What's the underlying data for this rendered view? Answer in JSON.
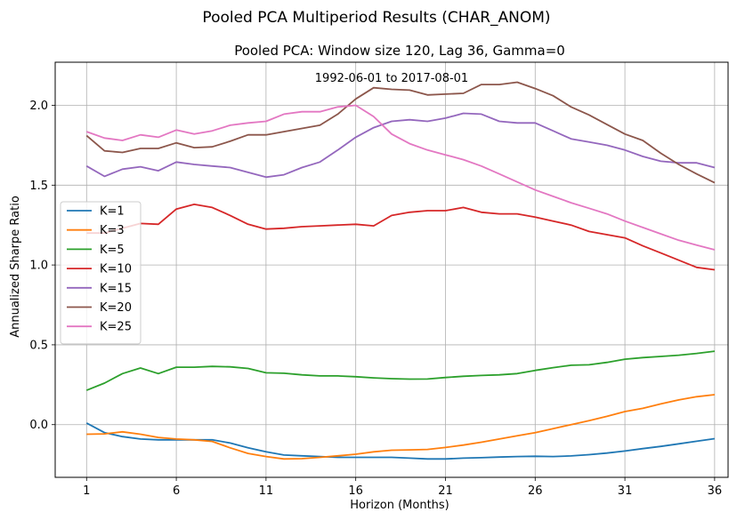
{
  "figure": {
    "suptitle": "Pooled PCA Multiperiod Results (CHAR_ANOM)"
  },
  "chart_data": {
    "type": "line",
    "title": "Pooled PCA: Window size 120, Lag 36, Gamma=0",
    "xlabel": "Horizon (Months)",
    "ylabel": "Annualized Sharpe Ratio",
    "annotation": "1992-06-01 to 2017-08-01",
    "xlim": [
      -0.75,
      36.75
    ],
    "ylim": [
      -0.33,
      2.27
    ],
    "xticks": [
      1,
      6,
      11,
      16,
      21,
      26,
      31,
      36
    ],
    "yticks": [
      0.0,
      0.5,
      1.0,
      1.5,
      2.0
    ],
    "ytick_labels": [
      "0.0",
      "0.5",
      "1.0",
      "1.5",
      "2.0"
    ],
    "grid": true,
    "legend_position": "center-left",
    "x": [
      1,
      2,
      3,
      4,
      5,
      6,
      7,
      8,
      9,
      10,
      11,
      12,
      13,
      14,
      15,
      16,
      17,
      18,
      19,
      20,
      21,
      22,
      23,
      24,
      25,
      26,
      27,
      28,
      29,
      30,
      31,
      32,
      33,
      34,
      35,
      36
    ],
    "series": [
      {
        "name": "K=1",
        "color": "#1f77b4",
        "values": [
          0.01,
          -0.05,
          -0.075,
          -0.09,
          -0.095,
          -0.095,
          -0.095,
          -0.095,
          -0.115,
          -0.145,
          -0.17,
          -0.19,
          -0.195,
          -0.2,
          -0.205,
          -0.205,
          -0.205,
          -0.205,
          -0.21,
          -0.215,
          -0.215,
          -0.21,
          -0.207,
          -0.203,
          -0.2,
          -0.198,
          -0.2,
          -0.196,
          -0.188,
          -0.178,
          -0.165,
          -0.15,
          -0.136,
          -0.12,
          -0.104,
          -0.088
        ]
      },
      {
        "name": "K=3",
        "color": "#ff7f0e",
        "values": [
          -0.06,
          -0.058,
          -0.045,
          -0.06,
          -0.08,
          -0.09,
          -0.095,
          -0.105,
          -0.145,
          -0.18,
          -0.2,
          -0.215,
          -0.213,
          -0.205,
          -0.195,
          -0.185,
          -0.17,
          -0.16,
          -0.158,
          -0.155,
          -0.143,
          -0.128,
          -0.11,
          -0.09,
          -0.07,
          -0.05,
          -0.025,
          0.0,
          0.025,
          0.052,
          0.082,
          0.102,
          0.13,
          0.155,
          0.175,
          0.188
        ]
      },
      {
        "name": "K=5",
        "color": "#2ca02c",
        "values": [
          0.215,
          0.26,
          0.32,
          0.355,
          0.32,
          0.36,
          0.36,
          0.365,
          0.362,
          0.352,
          0.325,
          0.322,
          0.312,
          0.305,
          0.305,
          0.3,
          0.293,
          0.288,
          0.285,
          0.286,
          0.295,
          0.303,
          0.308,
          0.312,
          0.32,
          0.34,
          0.357,
          0.372,
          0.375,
          0.39,
          0.41,
          0.42,
          0.427,
          0.435,
          0.446,
          0.46
        ]
      },
      {
        "name": "K=10",
        "color": "#d62728",
        "values": [
          1.2,
          1.2,
          1.23,
          1.26,
          1.255,
          1.35,
          1.38,
          1.36,
          1.31,
          1.255,
          1.225,
          1.23,
          1.24,
          1.245,
          1.25,
          1.255,
          1.245,
          1.31,
          1.33,
          1.34,
          1.34,
          1.36,
          1.33,
          1.32,
          1.32,
          1.3,
          1.275,
          1.25,
          1.21,
          1.19,
          1.17,
          1.12,
          1.075,
          1.03,
          0.985,
          0.97
        ]
      },
      {
        "name": "K=15",
        "color": "#9467bd",
        "values": [
          1.62,
          1.555,
          1.6,
          1.615,
          1.59,
          1.645,
          1.63,
          1.62,
          1.61,
          1.58,
          1.55,
          1.565,
          1.61,
          1.645,
          1.72,
          1.8,
          1.86,
          1.9,
          1.91,
          1.9,
          1.92,
          1.95,
          1.945,
          1.9,
          1.89,
          1.89,
          1.84,
          1.79,
          1.77,
          1.75,
          1.72,
          1.68,
          1.65,
          1.64,
          1.64,
          1.61
        ]
      },
      {
        "name": "K=20",
        "color": "#8c564b",
        "values": [
          1.81,
          1.715,
          1.705,
          1.73,
          1.73,
          1.765,
          1.735,
          1.74,
          1.775,
          1.815,
          1.815,
          1.835,
          1.855,
          1.875,
          1.945,
          2.04,
          2.11,
          2.1,
          2.095,
          2.065,
          2.07,
          2.075,
          2.13,
          2.13,
          2.145,
          2.105,
          2.06,
          1.99,
          1.94,
          1.88,
          1.82,
          1.78,
          1.7,
          1.63,
          1.57,
          1.515
        ]
      },
      {
        "name": "K=25",
        "color": "#e377c2",
        "values": [
          1.835,
          1.795,
          1.78,
          1.815,
          1.8,
          1.845,
          1.82,
          1.84,
          1.875,
          1.89,
          1.9,
          1.945,
          1.96,
          1.96,
          1.99,
          2.0,
          1.93,
          1.82,
          1.76,
          1.72,
          1.69,
          1.66,
          1.62,
          1.57,
          1.52,
          1.47,
          1.43,
          1.39,
          1.355,
          1.32,
          1.275,
          1.235,
          1.195,
          1.155,
          1.125,
          1.095
        ]
      }
    ]
  }
}
